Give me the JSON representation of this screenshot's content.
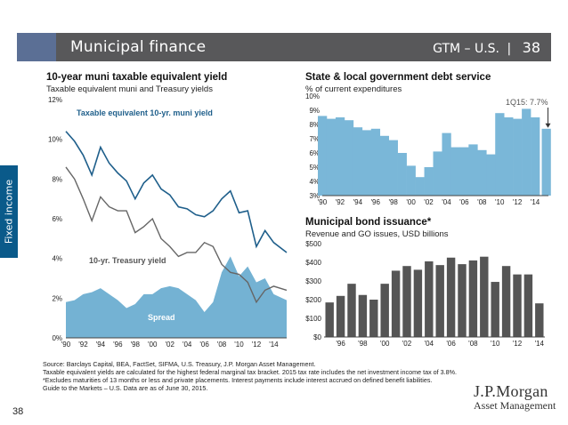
{
  "header": {
    "title": "Municipal finance",
    "section": "GTM – U.S.",
    "separator": "|",
    "page": "38"
  },
  "side_tab": "Fixed income",
  "page_number": "38",
  "footer": [
    "Source: Barclays Capital, BEA, FactSet, SIFMA, U.S. Treasury, J.P. Morgan Asset Management.",
    "Taxable equivalent yields are calculated for the highest federal marginal tax bracket. 2015 tax rate includes the net investment income tax of 3.8%.",
    "*Excludes maturities of 13 months or less and private placements. Interest payments include interest accrued on defined benefit liabilities.",
    "Guide to the Markets – U.S. Data are as of June 30, 2015."
  ],
  "logo": {
    "line1": "J.P.Morgan",
    "line2": "Asset Management"
  },
  "colors": {
    "muni": "#1f5f8b",
    "treasury": "#666666",
    "spread": "#74b2d3",
    "debt": "#7ab7d8",
    "issuance": "#555555",
    "header": "#58585a",
    "accent": "#5b6f95",
    "side_tab": "#0a5a8a"
  },
  "chart_data": [
    {
      "type": "area",
      "title": "10-year muni taxable equivalent yield",
      "subtitle": "Taxable equivalent muni and Treasury yields",
      "x_ticks": [
        "'90",
        "'92",
        "'94",
        "'96",
        "'98",
        "'00",
        "'02",
        "'04",
        "'06",
        "'08",
        "'10",
        "'12",
        "'14"
      ],
      "y_ticks": [
        "0%",
        "2%",
        "4%",
        "6%",
        "8%",
        "10%",
        "12%"
      ],
      "ylim": [
        0,
        12
      ],
      "xlim": [
        1990,
        2015.5
      ],
      "x": [
        1990,
        1991,
        1992,
        1993,
        1994,
        1995,
        1996,
        1997,
        1998,
        1999,
        2000,
        2001,
        2002,
        2003,
        2004,
        2005,
        2006,
        2007,
        2008,
        2009,
        2010,
        2011,
        2012,
        2013,
        2014,
        2015.5
      ],
      "series": [
        {
          "name": "Taxable equivalent 10-yr. muni yield",
          "values": [
            10.4,
            9.9,
            9.2,
            8.2,
            9.6,
            8.8,
            8.3,
            7.9,
            7.0,
            7.8,
            8.2,
            7.5,
            7.2,
            6.6,
            6.5,
            6.2,
            6.1,
            6.4,
            7.0,
            7.4,
            6.3,
            6.4,
            4.6,
            5.4,
            4.8,
            4.3
          ]
        },
        {
          "name": "10-yr. Treasury yield",
          "values": [
            8.6,
            8.0,
            7.0,
            5.9,
            7.1,
            6.6,
            6.4,
            6.4,
            5.3,
            5.6,
            6.0,
            5.0,
            4.6,
            4.1,
            4.3,
            4.3,
            4.8,
            4.6,
            3.7,
            3.3,
            3.2,
            2.8,
            1.8,
            2.4,
            2.6,
            2.4
          ]
        },
        {
          "name": "Spread",
          "values": [
            1.8,
            1.9,
            2.2,
            2.3,
            2.5,
            2.2,
            1.9,
            1.5,
            1.7,
            2.2,
            2.2,
            2.5,
            2.6,
            2.5,
            2.2,
            1.9,
            1.3,
            1.8,
            3.3,
            4.1,
            3.1,
            3.6,
            2.8,
            3.0,
            2.2,
            1.9
          ]
        }
      ],
      "annotations": [
        "Taxable equivalent 10-yr. muni yield",
        "10-yr. Treasury yield",
        "Spread"
      ]
    },
    {
      "type": "bar",
      "title": "State & local government debt service",
      "subtitle": "% of current expenditures",
      "x_ticks": [
        "'90",
        "'92",
        "'94",
        "'96",
        "'98",
        "'00",
        "'02",
        "'04",
        "'06",
        "'08",
        "'10",
        "'12",
        "'14"
      ],
      "y_ticks": [
        "3%",
        "4%",
        "5%",
        "6%",
        "7%",
        "8%",
        "9%",
        "10%"
      ],
      "ylim": [
        3,
        10
      ],
      "xlim": [
        1990,
        2015.5
      ],
      "x": [
        1990,
        1991,
        1992,
        1993,
        1994,
        1995,
        1996,
        1997,
        1998,
        1999,
        2000,
        2001,
        2002,
        2003,
        2004,
        2005,
        2006,
        2007,
        2008,
        2009,
        2010,
        2011,
        2012,
        2013,
        2014,
        2015.25
      ],
      "values": [
        8.6,
        8.4,
        8.5,
        8.3,
        7.8,
        7.6,
        7.7,
        7.2,
        6.9,
        6.0,
        5.1,
        4.3,
        5.0,
        6.1,
        7.4,
        6.4,
        6.4,
        6.6,
        6.2,
        5.9,
        8.8,
        8.5,
        8.4,
        9.1,
        8.5,
        7.7
      ],
      "annotation": "1Q15: 7.7%"
    },
    {
      "type": "bar",
      "title": "Municipal bond issuance*",
      "subtitle": "Revenue and GO issues, USD billions",
      "categories": [
        "1995",
        "1996",
        "1997",
        "1998",
        "1999",
        "2000",
        "2001",
        "2002",
        "2003",
        "2004",
        "2005",
        "2006",
        "2007",
        "2008",
        "2009",
        "2010",
        "2011",
        "2012",
        "2013",
        "2014"
      ],
      "x_ticks": [
        "'96",
        "'98",
        "'00",
        "'02",
        "'04",
        "'06",
        "'08",
        "'10",
        "'12",
        "'14"
      ],
      "y_ticks": [
        "$0",
        "$100",
        "$200",
        "$300",
        "$400",
        "$500"
      ],
      "ylim": [
        0,
        500
      ],
      "values": [
        185,
        220,
        285,
        225,
        200,
        285,
        355,
        380,
        360,
        405,
        385,
        425,
        390,
        410,
        430,
        295,
        380,
        335,
        335,
        180
      ]
    }
  ]
}
